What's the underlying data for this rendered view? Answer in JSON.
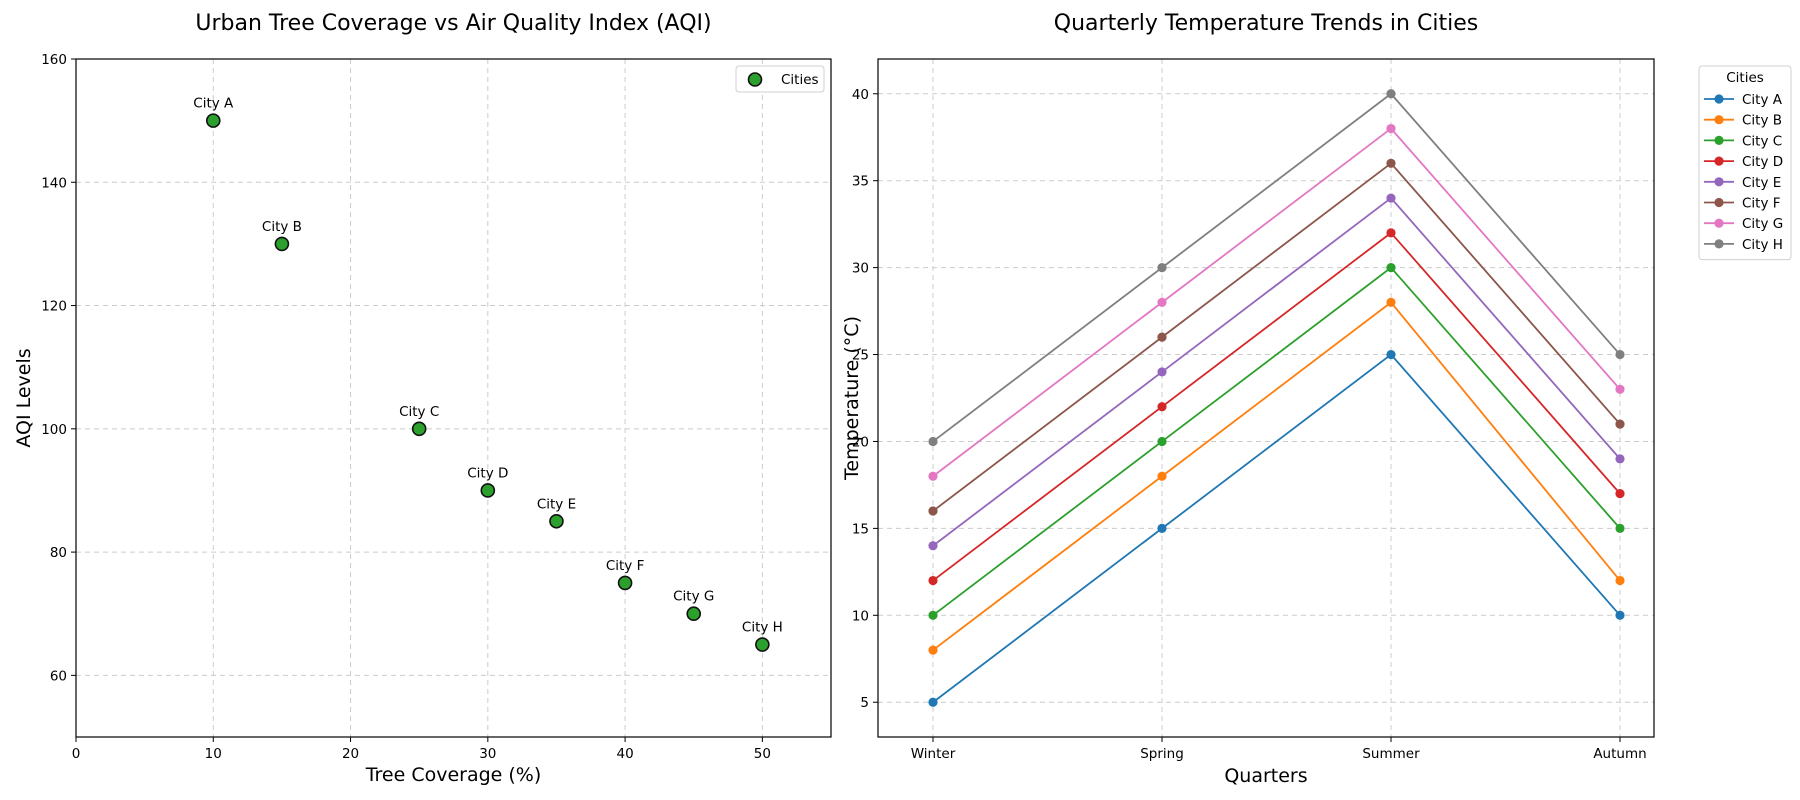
{
  "chart_data": [
    {
      "type": "scatter",
      "title": "Urban Tree Coverage vs Air Quality Index (AQI)",
      "xlabel": "Tree Coverage (%)",
      "ylabel": "AQI Levels",
      "xlim": [
        0,
        55
      ],
      "ylim": [
        50,
        160
      ],
      "xticks": [
        0,
        10,
        20,
        30,
        40,
        50
      ],
      "yticks": [
        60,
        80,
        100,
        120,
        140,
        160
      ],
      "grid": true,
      "legend_position": "top-right",
      "series": [
        {
          "name": "Cities",
          "color": "#2ca02c",
          "points": [
            {
              "label": "City A",
              "x": 10,
              "y": 150
            },
            {
              "label": "City B",
              "x": 15,
              "y": 130
            },
            {
              "label": "City C",
              "x": 25,
              "y": 100
            },
            {
              "label": "City D",
              "x": 30,
              "y": 90
            },
            {
              "label": "City E",
              "x": 35,
              "y": 85
            },
            {
              "label": "City F",
              "x": 40,
              "y": 75
            },
            {
              "label": "City G",
              "x": 45,
              "y": 70
            },
            {
              "label": "City H",
              "x": 50,
              "y": 65
            }
          ]
        }
      ]
    },
    {
      "type": "line",
      "title": "Quarterly Temperature Trends in Cities",
      "xlabel": "Quarters",
      "ylabel": "Temperature (°C)",
      "categories": [
        "Winter",
        "Spring",
        "Summer",
        "Autumn"
      ],
      "ylim": [
        3,
        42
      ],
      "yticks": [
        5,
        10,
        15,
        20,
        25,
        30,
        35,
        40
      ],
      "grid": true,
      "legend_title": "Cities",
      "legend_position": "outside-top-right",
      "series": [
        {
          "name": "City A",
          "color": "#1f77b4",
          "values": [
            5,
            15,
            25,
            10
          ]
        },
        {
          "name": "City B",
          "color": "#ff7f0e",
          "values": [
            8,
            18,
            28,
            12
          ]
        },
        {
          "name": "City C",
          "color": "#2ca02c",
          "values": [
            10,
            20,
            30,
            15
          ]
        },
        {
          "name": "City D",
          "color": "#d62728",
          "values": [
            12,
            22,
            32,
            17
          ]
        },
        {
          "name": "City E",
          "color": "#9467bd",
          "values": [
            14,
            24,
            34,
            19
          ]
        },
        {
          "name": "City F",
          "color": "#8c564b",
          "values": [
            16,
            26,
            36,
            21
          ]
        },
        {
          "name": "City G",
          "color": "#e377c2",
          "values": [
            18,
            28,
            38,
            23
          ]
        },
        {
          "name": "City H",
          "color": "#7f7f7f",
          "values": [
            20,
            30,
            40,
            25
          ]
        }
      ]
    }
  ]
}
